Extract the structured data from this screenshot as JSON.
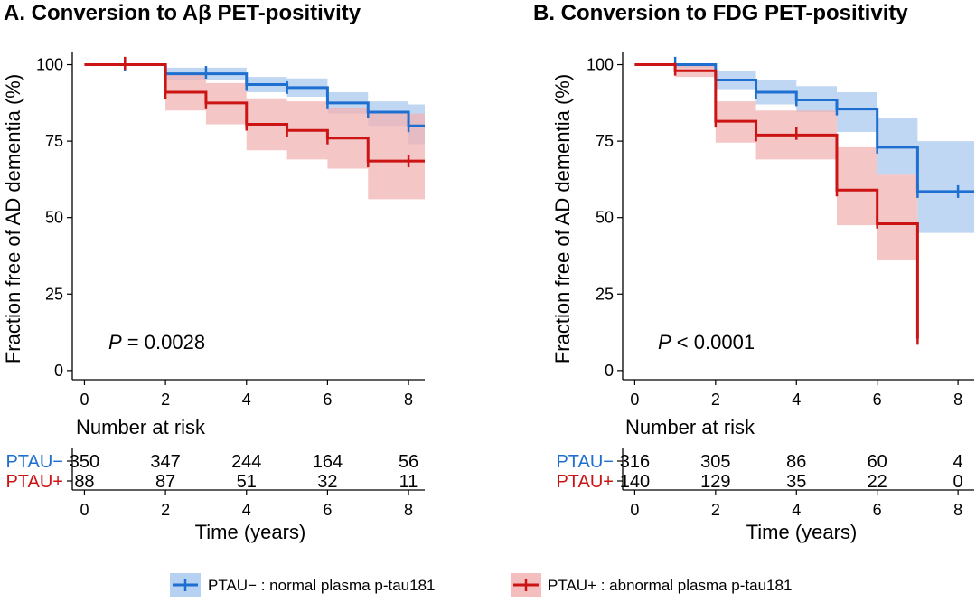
{
  "legend": [
    {
      "key": "PTAU-",
      "name": "PTAU− : normal plasma p-tau181",
      "color": "#1f6fd0",
      "band": "#a9c9ee"
    },
    {
      "key": "PTAU+",
      "name": "PTAU+ : abnormal plasma p-tau181",
      "color": "#cc1414",
      "band": "#f2b3b3"
    }
  ],
  "chart_data": [
    {
      "type": "line",
      "subtype": "kaplan-meier",
      "title": "A. Conversion to Aβ PET-positivity",
      "xlabel": "Time (years)",
      "ylabel": "Fraction free of AD dementia (%)",
      "xlim": [
        -0.3,
        8.4
      ],
      "ylim": [
        -3,
        104
      ],
      "x_ticks": [
        0,
        2,
        4,
        6,
        8
      ],
      "y_ticks": [
        0,
        25,
        50,
        75,
        100
      ],
      "annotation": {
        "p_label": "P",
        "p_text": " = 0.0028"
      },
      "series": [
        {
          "name": "PTAU−",
          "color": "#1f6fd0",
          "band": "#a9c9ee",
          "steps": [
            [
              0,
              100
            ],
            [
              2,
              97
            ],
            [
              3,
              97
            ],
            [
              4,
              93.5
            ],
            [
              5,
              92.5
            ],
            [
              6,
              87.5
            ],
            [
              7,
              84.5
            ],
            [
              8,
              80
            ],
            [
              8.4,
              80
            ]
          ],
          "lower": [
            [
              0,
              100
            ],
            [
              2,
              95
            ],
            [
              3,
              95
            ],
            [
              4,
              91
            ],
            [
              5,
              89.5
            ],
            [
              6,
              84
            ],
            [
              7,
              80
            ],
            [
              8,
              74
            ],
            [
              8.4,
              74
            ]
          ],
          "upper": [
            [
              0,
              100
            ],
            [
              2,
              99
            ],
            [
              3,
              99
            ],
            [
              4,
              96
            ],
            [
              5,
              95.5
            ],
            [
              6,
              91
            ],
            [
              7,
              88
            ],
            [
              8,
              87
            ],
            [
              8.4,
              87
            ]
          ],
          "censor": [
            [
              1,
              100
            ],
            [
              2,
              97
            ],
            [
              3,
              97.5
            ],
            [
              4,
              93.5
            ],
            [
              5,
              92.5
            ],
            [
              6,
              87.5
            ],
            [
              7,
              84.5
            ],
            [
              8,
              80
            ]
          ]
        },
        {
          "name": "PTAU+",
          "color": "#cc1414",
          "band": "#f2b3b3",
          "steps": [
            [
              0,
              100
            ],
            [
              2,
              91
            ],
            [
              3,
              87.5
            ],
            [
              4,
              80.5
            ],
            [
              5,
              78.5
            ],
            [
              6,
              76
            ],
            [
              7,
              68.5
            ],
            [
              8.4,
              68.5
            ]
          ],
          "lower": [
            [
              0,
              100
            ],
            [
              2,
              85
            ],
            [
              3,
              80.5
            ],
            [
              4,
              72
            ],
            [
              5,
              69
            ],
            [
              6,
              66
            ],
            [
              7,
              56
            ],
            [
              8.4,
              56
            ]
          ],
          "upper": [
            [
              0,
              100
            ],
            [
              2,
              97
            ],
            [
              3,
              94
            ],
            [
              4,
              89
            ],
            [
              5,
              88
            ],
            [
              6,
              86
            ],
            [
              7,
              84
            ],
            [
              8.4,
              84
            ]
          ],
          "censor": [
            [
              1,
              100.5
            ],
            [
              2,
              91
            ],
            [
              3,
              87.5
            ],
            [
              4,
              80.5
            ],
            [
              5,
              78.5
            ],
            [
              6,
              76
            ],
            [
              7,
              68.5
            ],
            [
              8,
              68.5
            ]
          ]
        }
      ],
      "risk_table": {
        "title": "Number at risk",
        "rows": [
          {
            "label": "PTAU−",
            "color": "#1f6fd0",
            "values": [
              "350",
              "347",
              "244",
              "164",
              "56"
            ]
          },
          {
            "label": "PTAU+",
            "color": "#cc1414",
            "values": [
              "88",
              "87",
              "51",
              "32",
              "11"
            ]
          }
        ],
        "x_ticks": [
          0,
          2,
          4,
          6,
          8
        ],
        "xlabel": "Time (years)"
      }
    },
    {
      "type": "line",
      "subtype": "kaplan-meier",
      "title": "B. Conversion to FDG PET-positivity",
      "xlabel": "Time (years)",
      "ylabel": "Fraction free of AD dementia (%)",
      "xlim": [
        -0.3,
        8.4
      ],
      "ylim": [
        -3,
        104
      ],
      "x_ticks": [
        0,
        2,
        4,
        6,
        8
      ],
      "y_ticks": [
        0,
        25,
        50,
        75,
        100
      ],
      "annotation": {
        "p_label": "P",
        "p_text": " < 0.0001"
      },
      "series": [
        {
          "name": "PTAU−",
          "color": "#1f6fd0",
          "band": "#a9c9ee",
          "steps": [
            [
              0,
              100
            ],
            [
              1,
              100
            ],
            [
              2,
              95
            ],
            [
              3,
              91
            ],
            [
              4,
              88.5
            ],
            [
              5,
              85.5
            ],
            [
              6,
              73
            ],
            [
              7,
              58.5
            ],
            [
              8.4,
              58.5
            ]
          ],
          "lower": [
            [
              0,
              100
            ],
            [
              1,
              99
            ],
            [
              2,
              92
            ],
            [
              3,
              87
            ],
            [
              4,
              84.5
            ],
            [
              5,
              78
            ],
            [
              6,
              64
            ],
            [
              7,
              45
            ],
            [
              8.4,
              45
            ]
          ],
          "upper": [
            [
              0,
              100
            ],
            [
              1,
              100
            ],
            [
              2,
              98
            ],
            [
              3,
              95
            ],
            [
              4,
              93
            ],
            [
              5,
              91
            ],
            [
              6,
              82.5
            ],
            [
              7,
              75
            ],
            [
              8.4,
              75
            ]
          ],
          "censor": [
            [
              1,
              100.5
            ],
            [
              2,
              95
            ],
            [
              3,
              91
            ],
            [
              4,
              88.5
            ],
            [
              5,
              85.5
            ],
            [
              6,
              73
            ],
            [
              7,
              58.5
            ],
            [
              8,
              58.5
            ]
          ]
        },
        {
          "name": "PTAU+",
          "color": "#cc1414",
          "band": "#f2b3b3",
          "steps": [
            [
              0,
              100
            ],
            [
              1,
              98
            ],
            [
              2,
              81.5
            ],
            [
              3,
              77
            ],
            [
              4,
              77
            ],
            [
              5,
              59
            ],
            [
              6,
              48
            ],
            [
              7,
              10.5
            ]
          ],
          "lower": [
            [
              0,
              100
            ],
            [
              1,
              96
            ],
            [
              2,
              74.5
            ],
            [
              3,
              69
            ],
            [
              4,
              69
            ],
            [
              5,
              47.5
            ],
            [
              6,
              36
            ],
            [
              7,
              36
            ]
          ],
          "upper": [
            [
              0,
              100
            ],
            [
              1,
              100
            ],
            [
              2,
              88
            ],
            [
              3,
              85
            ],
            [
              4,
              85
            ],
            [
              5,
              73
            ],
            [
              6,
              64
            ],
            [
              7,
              64
            ]
          ],
          "censor": [
            [
              1,
              98.5
            ],
            [
              2,
              81.5
            ],
            [
              3,
              77
            ],
            [
              4,
              77.5
            ],
            [
              5,
              59
            ],
            [
              6,
              48.5
            ],
            [
              7,
              10.5
            ]
          ]
        }
      ],
      "risk_table": {
        "title": "Number at risk",
        "rows": [
          {
            "label": "PTAU−",
            "color": "#1f6fd0",
            "values": [
              "316",
              "305",
              "86",
              "60",
              "4"
            ]
          },
          {
            "label": "PTAU+",
            "color": "#cc1414",
            "values": [
              "140",
              "129",
              "35",
              "22",
              "0"
            ]
          }
        ],
        "x_ticks": [
          0,
          2,
          4,
          6,
          8
        ],
        "xlabel": "Time (years)"
      }
    }
  ]
}
